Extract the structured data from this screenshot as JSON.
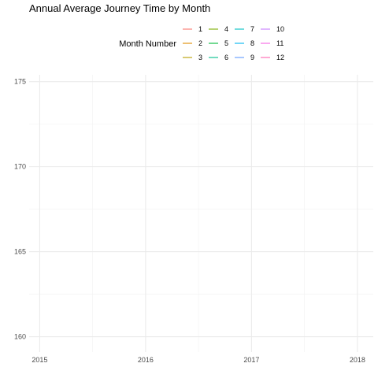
{
  "chart_data": {
    "type": "line",
    "title": "Annual Average Journey Time by Month",
    "xlabel": "",
    "ylabel": "",
    "x_ticks": [
      2015,
      2016,
      2017,
      2018
    ],
    "y_ticks": [
      160,
      165,
      170,
      175
    ],
    "xlim": [
      2014.9,
      2018.15
    ],
    "ylim": [
      159.1,
      175.4
    ],
    "grid": true,
    "legend": {
      "title": "Month Number",
      "placement": "top",
      "entries": [
        {
          "label": "1",
          "color": "#F8766D"
        },
        {
          "label": "2",
          "color": "#DE8C00"
        },
        {
          "label": "3",
          "color": "#B79F00"
        },
        {
          "label": "4",
          "color": "#7CAE00"
        },
        {
          "label": "5",
          "color": "#00BA38"
        },
        {
          "label": "6",
          "color": "#00C08B"
        },
        {
          "label": "7",
          "color": "#00BFC4"
        },
        {
          "label": "8",
          "color": "#00B4F0"
        },
        {
          "label": "9",
          "color": "#619CFF"
        },
        {
          "label": "10",
          "color": "#C77CFF"
        },
        {
          "label": "11",
          "color": "#F564E3"
        },
        {
          "label": "12",
          "color": "#FF64B0"
        }
      ]
    },
    "series": []
  }
}
